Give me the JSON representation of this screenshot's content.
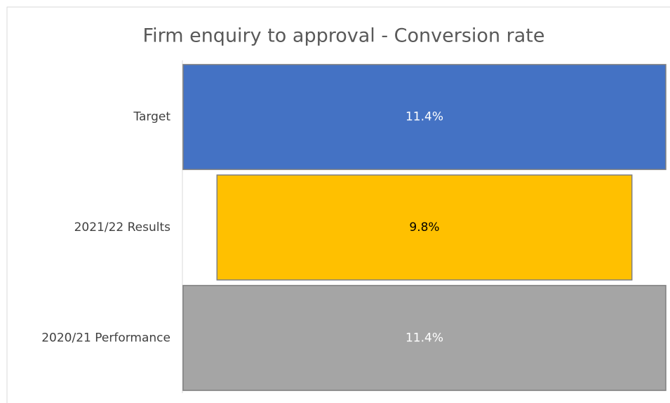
{
  "chart_data": {
    "type": "funnel",
    "title": "Firm enquiry to approval - Conversion rate",
    "categories": [
      "Target",
      "2021/22 Results",
      "2020/21 Performance"
    ],
    "values": [
      11.4,
      9.8,
      11.4
    ],
    "value_labels": [
      "11.4%",
      "9.8%",
      "11.4%"
    ],
    "colors": [
      "#4472c4",
      "#ffc000",
      "#a5a5a5"
    ]
  }
}
